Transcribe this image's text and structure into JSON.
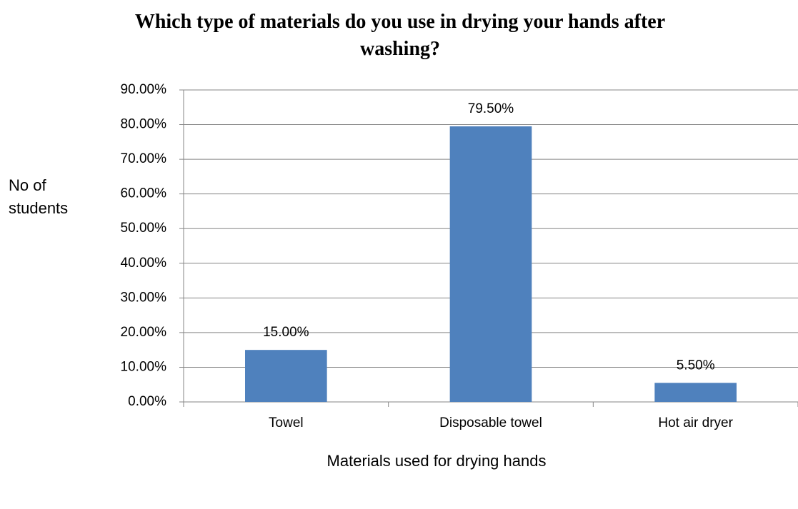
{
  "chart_data": {
    "type": "bar",
    "title": "Which type of materials do you use in drying your hands after washing?",
    "y_label": "No of students",
    "x_label": "Materials used for drying hands",
    "categories": [
      "Towel",
      "Disposable towel",
      "Hot air dryer"
    ],
    "values": [
      15,
      79.5,
      5.5
    ],
    "value_labels": [
      "15.00%",
      "79.50%",
      "5.50%"
    ],
    "color": "#4f81bd",
    "ylim": [
      0,
      90
    ],
    "yticks": [
      {
        "value": 0,
        "label": "0.00%"
      },
      {
        "value": 10,
        "label": "10.00%"
      },
      {
        "value": 20,
        "label": "20.00%"
      },
      {
        "value": 30,
        "label": "30.00%"
      },
      {
        "value": 40,
        "label": "40.00%"
      },
      {
        "value": 50,
        "label": "50.00%"
      },
      {
        "value": 60,
        "label": "60.00%"
      },
      {
        "value": 70,
        "label": "70.00%"
      },
      {
        "value": 80,
        "label": "80.00%"
      },
      {
        "value": 90,
        "label": "90.00%"
      }
    ],
    "grid": true
  }
}
